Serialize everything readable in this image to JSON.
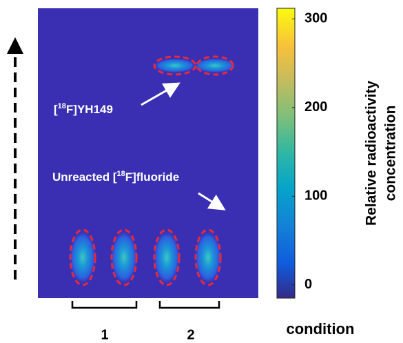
{
  "chart_data": {
    "type": "image",
    "colorbar": {
      "label_lines": [
        "Relative radioactivity",
        "concentration"
      ],
      "clim": [
        -15,
        312
      ],
      "ticks": [
        0,
        100,
        200,
        300
      ]
    },
    "annotations": [
      {
        "prefix": "[",
        "sup": "18",
        "suffix": "F]YH149"
      },
      {
        "prefix": "Unreacted [",
        "sup": "18",
        "suffix": "F]fluoride"
      }
    ],
    "groups": [
      "1",
      "2"
    ],
    "xlabel": "condition"
  }
}
